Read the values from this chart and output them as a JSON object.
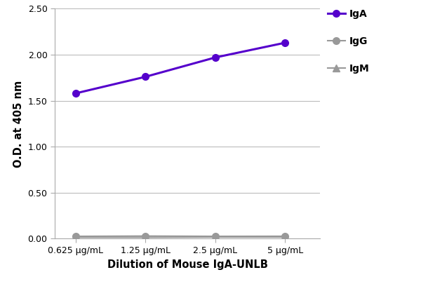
{
  "x_labels": [
    "0.625 μg/mL",
    "1.25 μg/mL",
    "2.5 μg/mL",
    "5 μg/mL"
  ],
  "x_positions": [
    0,
    1,
    2,
    3
  ],
  "IgA_values": [
    1.58,
    1.76,
    1.97,
    2.13
  ],
  "IgG_values": [
    0.025,
    0.028,
    0.025,
    0.026
  ],
  "IgM_values": [
    0.015,
    0.015,
    0.018,
    0.018
  ],
  "IgA_color": "#5500cc",
  "IgG_color": "#999999",
  "IgM_color": "#999999",
  "xlabel": "Dilution of Mouse IgA-UNLB",
  "ylabel": "O.D. at 405 nm",
  "ylim": [
    0,
    2.5
  ],
  "yticks": [
    0.0,
    0.5,
    1.0,
    1.5,
    2.0,
    2.5
  ],
  "legend_labels": [
    "IgA",
    "IgG",
    "IgM"
  ],
  "background_color": "#ffffff",
  "grid_color": "#bbbbbb"
}
